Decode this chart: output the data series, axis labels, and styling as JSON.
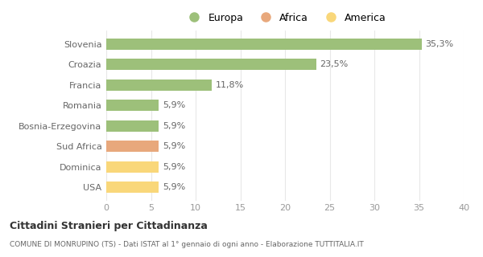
{
  "categories": [
    "USA",
    "Dominica",
    "Sud Africa",
    "Bosnia-Erzegovina",
    "Romania",
    "Francia",
    "Croazia",
    "Slovenia"
  ],
  "values": [
    5.9,
    5.9,
    5.9,
    5.9,
    5.9,
    11.8,
    23.5,
    35.3
  ],
  "labels": [
    "5,9%",
    "5,9%",
    "5,9%",
    "5,9%",
    "5,9%",
    "11,8%",
    "23,5%",
    "35,3%"
  ],
  "colors": [
    "#f9d77a",
    "#f9d77a",
    "#e8a87c",
    "#9dc07a",
    "#9dc07a",
    "#9dc07a",
    "#9dc07a",
    "#9dc07a"
  ],
  "legend": [
    {
      "label": "Europa",
      "color": "#9dc07a"
    },
    {
      "label": "Africa",
      "color": "#e8a87c"
    },
    {
      "label": "America",
      "color": "#f9d77a"
    }
  ],
  "xlim": [
    0,
    40
  ],
  "xticks": [
    0,
    5,
    10,
    15,
    20,
    25,
    30,
    35,
    40
  ],
  "title": "Cittadini Stranieri per Cittadinanza",
  "subtitle": "COMUNE DI MONRUPINO (TS) - Dati ISTAT al 1° gennaio di ogni anno - Elaborazione TUTTITALIA.IT",
  "background_color": "#ffffff",
  "grid_color": "#e8e8e8",
  "label_color": "#666666",
  "tick_color": "#999999"
}
